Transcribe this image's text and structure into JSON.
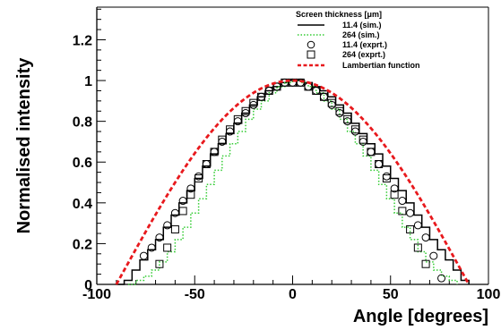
{
  "chart_data": {
    "type": "line",
    "xlabel": "Angle [degrees]",
    "ylabel": "Normalised intensity",
    "xlim": [
      -100,
      100
    ],
    "ylim": [
      0,
      1.36
    ],
    "x_ticks": [
      -100,
      -50,
      0,
      50,
      100
    ],
    "x_tick_labels": [
      "-100",
      "-50",
      "0",
      "50",
      "100"
    ],
    "y_ticks": [
      0,
      0.2,
      0.4,
      0.6,
      0.8,
      1,
      1.2
    ],
    "y_tick_labels": [
      "0",
      "0.2",
      "0.4",
      "0.6",
      "0.8",
      "1",
      "1.2"
    ],
    "grid": false,
    "legend": {
      "title": "Screen thickness [μm]",
      "placement": "top-right",
      "entries": [
        {
          "label": "11.4 (sim.)",
          "style": "solid-line",
          "color": "#000000"
        },
        {
          "label": "264 (sim.)",
          "style": "dotted-line",
          "color": "#33cc33"
        },
        {
          "label": "11.4 (exprt.)",
          "style": "open-circle",
          "color": "#000000"
        },
        {
          "label": "264 (exprt.)",
          "style": "open-square",
          "color": "#000000"
        },
        {
          "label": "Lambertian function",
          "style": "dashed-line",
          "color": "#e8191d"
        }
      ]
    },
    "series": [
      {
        "name": "11.4 (sim.)",
        "kind": "step",
        "color": "#000000",
        "x": [
          -90,
          -86,
          -82,
          -78,
          -74,
          -70,
          -66,
          -62,
          -58,
          -54,
          -50,
          -46,
          -42,
          -38,
          -34,
          -30,
          -26,
          -22,
          -18,
          -14,
          -10,
          -6,
          -2,
          2,
          6,
          10,
          14,
          18,
          22,
          26,
          30,
          34,
          38,
          42,
          46,
          50,
          54,
          58,
          62,
          66,
          70,
          74,
          78,
          82,
          86,
          90
        ],
        "y": [
          0.0,
          0.02,
          0.07,
          0.12,
          0.17,
          0.22,
          0.28,
          0.34,
          0.4,
          0.46,
          0.52,
          0.58,
          0.64,
          0.69,
          0.74,
          0.79,
          0.84,
          0.88,
          0.92,
          0.95,
          0.97,
          0.99,
          1.0,
          1.0,
          0.99,
          0.97,
          0.95,
          0.92,
          0.88,
          0.84,
          0.79,
          0.74,
          0.69,
          0.64,
          0.58,
          0.52,
          0.46,
          0.4,
          0.34,
          0.28,
          0.22,
          0.17,
          0.12,
          0.07,
          0.02,
          0.0
        ]
      },
      {
        "name": "264 (sim.)",
        "kind": "step",
        "color": "#33cc33",
        "x": [
          -84,
          -80,
          -76,
          -72,
          -68,
          -64,
          -60,
          -56,
          -52,
          -48,
          -44,
          -40,
          -36,
          -32,
          -28,
          -24,
          -20,
          -16,
          -12,
          -8,
          -4,
          0,
          4,
          8,
          12,
          16,
          20,
          24,
          28,
          32,
          36,
          40,
          44,
          48,
          52,
          56,
          60,
          64,
          68,
          72,
          76,
          80,
          84
        ],
        "y": [
          0.0,
          0.02,
          0.04,
          0.07,
          0.11,
          0.16,
          0.22,
          0.28,
          0.35,
          0.42,
          0.49,
          0.56,
          0.63,
          0.69,
          0.75,
          0.81,
          0.86,
          0.9,
          0.94,
          0.97,
          0.99,
          1.0,
          0.99,
          0.97,
          0.94,
          0.9,
          0.86,
          0.81,
          0.75,
          0.69,
          0.63,
          0.56,
          0.49,
          0.42,
          0.35,
          0.28,
          0.22,
          0.16,
          0.11,
          0.07,
          0.04,
          0.02,
          0.0
        ]
      },
      {
        "name": "11.4 (exprt.)",
        "kind": "marker-circle",
        "color": "#000000",
        "x": [
          -76,
          -72,
          -68,
          -64,
          -60,
          -56,
          -52,
          -48,
          -44,
          -40,
          -36,
          -32,
          -28,
          -24,
          -20,
          -16,
          -12,
          -8,
          -4,
          0,
          4,
          8,
          12,
          16,
          20,
          24,
          28,
          32,
          36,
          40,
          44,
          48,
          52,
          56,
          60,
          64,
          68,
          72,
          76
        ],
        "y": [
          0.14,
          0.18,
          0.23,
          0.29,
          0.35,
          0.41,
          0.47,
          0.53,
          0.59,
          0.65,
          0.7,
          0.75,
          0.8,
          0.84,
          0.88,
          0.92,
          0.95,
          0.97,
          0.99,
          0.99,
          0.99,
          0.97,
          0.95,
          0.92,
          0.88,
          0.84,
          0.8,
          0.75,
          0.7,
          0.65,
          0.59,
          0.53,
          0.47,
          0.41,
          0.35,
          0.29,
          0.23,
          0.14,
          0.03
        ]
      },
      {
        "name": "264 (exprt.)",
        "kind": "marker-square",
        "color": "#000000",
        "x": [
          -68,
          -64,
          -60,
          -56,
          -52,
          -48,
          -44,
          -40,
          -36,
          -32,
          -28,
          -24,
          -20,
          -16,
          -12,
          -8,
          -4,
          0,
          4,
          8,
          12,
          16,
          20,
          24,
          28,
          32,
          36,
          40,
          44,
          48,
          52,
          56,
          60,
          64,
          68
        ],
        "y": [
          0.1,
          0.18,
          0.27,
          0.36,
          0.44,
          0.52,
          0.59,
          0.65,
          0.71,
          0.76,
          0.81,
          0.85,
          0.89,
          0.92,
          0.95,
          0.97,
          0.99,
          0.99,
          0.99,
          0.97,
          0.95,
          0.92,
          0.89,
          0.85,
          0.81,
          0.76,
          0.71,
          0.65,
          0.59,
          0.52,
          0.44,
          0.36,
          0.27,
          0.18,
          0.1
        ]
      },
      {
        "name": "Lambertian function",
        "kind": "dashed-line",
        "color": "#e8191d",
        "function": "cos(angle)",
        "x": [
          -90,
          -80,
          -70,
          -60,
          -50,
          -40,
          -30,
          -20,
          -10,
          0,
          10,
          20,
          30,
          40,
          50,
          60,
          70,
          80,
          90
        ],
        "y": [
          0.0,
          0.174,
          0.342,
          0.5,
          0.643,
          0.766,
          0.866,
          0.94,
          0.985,
          1.0,
          0.985,
          0.94,
          0.866,
          0.766,
          0.643,
          0.5,
          0.342,
          0.174,
          0.0
        ]
      }
    ]
  }
}
